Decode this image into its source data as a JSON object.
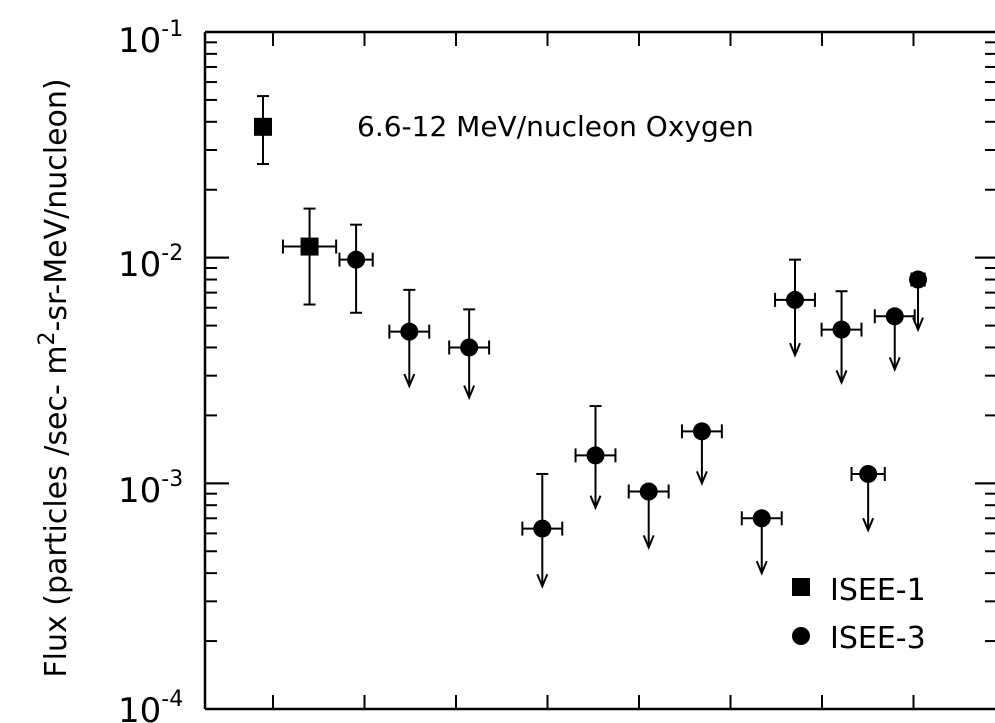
{
  "chart_data": {
    "type": "scatter",
    "title": "6.6-12 MeV/nucleon Oxygen",
    "ylabel": "Flux (particles /sec-m2-sr-MeV/nucleon)",
    "ylabel_parts": [
      "Flux (particles /sec- m",
      "2",
      "-sr-MeV/nucleon)"
    ],
    "xlabel": "",
    "yscale": "log",
    "ylim": [
      0.0001,
      0.1
    ],
    "xlim": [
      0,
      11
    ],
    "y_ticks": [
      {
        "base": "10",
        "exp": "-1",
        "value": 0.1
      },
      {
        "base": "10",
        "exp": "-2",
        "value": 0.01
      },
      {
        "base": "10",
        "exp": "-3",
        "value": 0.001
      },
      {
        "base": "10",
        "exp": "-4",
        "value": 0.0001
      }
    ],
    "legend_position": "bottom-right",
    "series": [
      {
        "name": "ISEE-1",
        "marker": "square",
        "points": [
          {
            "x": 1.0,
            "y": 0.038,
            "ylo": 0.026,
            "yhi": 0.052,
            "xerr": 0,
            "upper_limit": false
          },
          {
            "x": 1.7,
            "y": 0.0112,
            "ylo": 0.0062,
            "yhi": 0.0165,
            "xerr": 0.4,
            "upper_limit": false
          }
        ]
      },
      {
        "name": "ISEE-3",
        "marker": "circle",
        "points": [
          {
            "x": 2.4,
            "y": 0.0098,
            "ylo": 0.0057,
            "yhi": 0.014,
            "xerr": 0.25,
            "upper_limit": false
          },
          {
            "x": 3.2,
            "y": 0.0047,
            "ylo": 0.0027,
            "yhi": 0.0072,
            "xerr": 0.3,
            "upper_limit": true
          },
          {
            "x": 4.1,
            "y": 0.004,
            "ylo": 0.0024,
            "yhi": 0.0059,
            "xerr": 0.3,
            "upper_limit": true
          },
          {
            "x": 5.2,
            "y": 0.00063,
            "ylo": 0.00035,
            "yhi": 0.0011,
            "xerr": 0.3,
            "upper_limit": true
          },
          {
            "x": 6.0,
            "y": 0.00133,
            "ylo": 0.00078,
            "yhi": 0.0022,
            "xerr": 0.3,
            "upper_limit": true
          },
          {
            "x": 6.8,
            "y": 0.00092,
            "ylo": 0.00052,
            "yhi": 0.00092,
            "xerr": 0.3,
            "upper_limit": true
          },
          {
            "x": 7.6,
            "y": 0.0017,
            "ylo": 0.001,
            "yhi": 0.0017,
            "xerr": 0.3,
            "upper_limit": true
          },
          {
            "x": 8.5,
            "y": 0.0007,
            "ylo": 0.0004,
            "yhi": 0.0007,
            "xerr": 0.3,
            "upper_limit": true
          },
          {
            "x": 9.0,
            "y": 0.0065,
            "ylo": 0.0037,
            "yhi": 0.0098,
            "xerr": 0.3,
            "upper_limit": true
          },
          {
            "x": 9.7,
            "y": 0.0048,
            "ylo": 0.0028,
            "yhi": 0.0071,
            "xerr": 0.3,
            "upper_limit": true
          },
          {
            "x": 10.1,
            "y": 0.0011,
            "ylo": 0.00062,
            "yhi": 0.0011,
            "xerr": 0.25,
            "upper_limit": true
          },
          {
            "x": 10.5,
            "y": 0.0055,
            "ylo": 0.0032,
            "yhi": 0.0055,
            "xerr": 0.3,
            "upper_limit": true
          },
          {
            "x": 10.85,
            "y": 0.008,
            "ylo": 0.0048,
            "yhi": 0.008,
            "xerr": 0.1,
            "upper_limit": true
          }
        ]
      }
    ],
    "legend": [
      {
        "marker": "square",
        "label": "ISEE-1"
      },
      {
        "marker": "circle",
        "label": "ISEE-3"
      }
    ]
  }
}
